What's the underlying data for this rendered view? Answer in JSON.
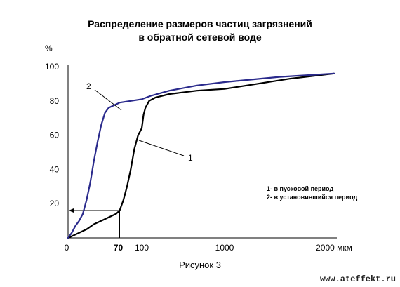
{
  "chart_data": {
    "type": "line",
    "title": "Распределение размеров частиц загрязнений",
    "subtitle": "в обратной сетевой воде",
    "ylabel": "%",
    "xlabel_unit": "мкм",
    "ylim": [
      0,
      100
    ],
    "y_ticks": [
      "0",
      "20",
      "40",
      "60",
      "80",
      "100"
    ],
    "x_ticks": [
      "100",
      "1000",
      "2000"
    ],
    "x_marker_label": "70",
    "x_marker_value": 70,
    "y_marker_value": 16,
    "series": [
      {
        "name": "1",
        "color": "#000000",
        "points": [
          [
            0,
            0
          ],
          [
            5,
            1
          ],
          [
            15,
            3
          ],
          [
            25,
            5
          ],
          [
            35,
            8
          ],
          [
            50,
            11
          ],
          [
            65,
            14
          ],
          [
            70,
            16
          ],
          [
            75,
            22
          ],
          [
            80,
            30
          ],
          [
            85,
            40
          ],
          [
            90,
            52
          ],
          [
            95,
            60
          ],
          [
            100,
            64
          ],
          [
            120,
            72
          ],
          [
            140,
            76
          ],
          [
            180,
            80
          ],
          [
            250,
            82
          ],
          [
            400,
            84
          ],
          [
            700,
            86
          ],
          [
            1000,
            87
          ],
          [
            1300,
            90
          ],
          [
            1600,
            93
          ],
          [
            2000,
            96
          ]
        ]
      },
      {
        "name": "2",
        "color": "#2a2a8c",
        "points": [
          [
            0,
            0
          ],
          [
            5,
            3
          ],
          [
            10,
            7
          ],
          [
            15,
            10
          ],
          [
            20,
            14
          ],
          [
            25,
            22
          ],
          [
            30,
            32
          ],
          [
            35,
            45
          ],
          [
            40,
            56
          ],
          [
            45,
            66
          ],
          [
            50,
            73
          ],
          [
            55,
            76
          ],
          [
            70,
            79
          ],
          [
            100,
            81
          ],
          [
            200,
            83
          ],
          [
            400,
            86
          ],
          [
            700,
            89
          ],
          [
            1000,
            91
          ],
          [
            1500,
            94
          ],
          [
            2000,
            96
          ]
        ]
      }
    ],
    "legend": [
      "1- в пусковой период",
      "2- в установившийся период"
    ],
    "caption": "Рисунок 3",
    "watermark": "www.ateffekt.ru"
  }
}
